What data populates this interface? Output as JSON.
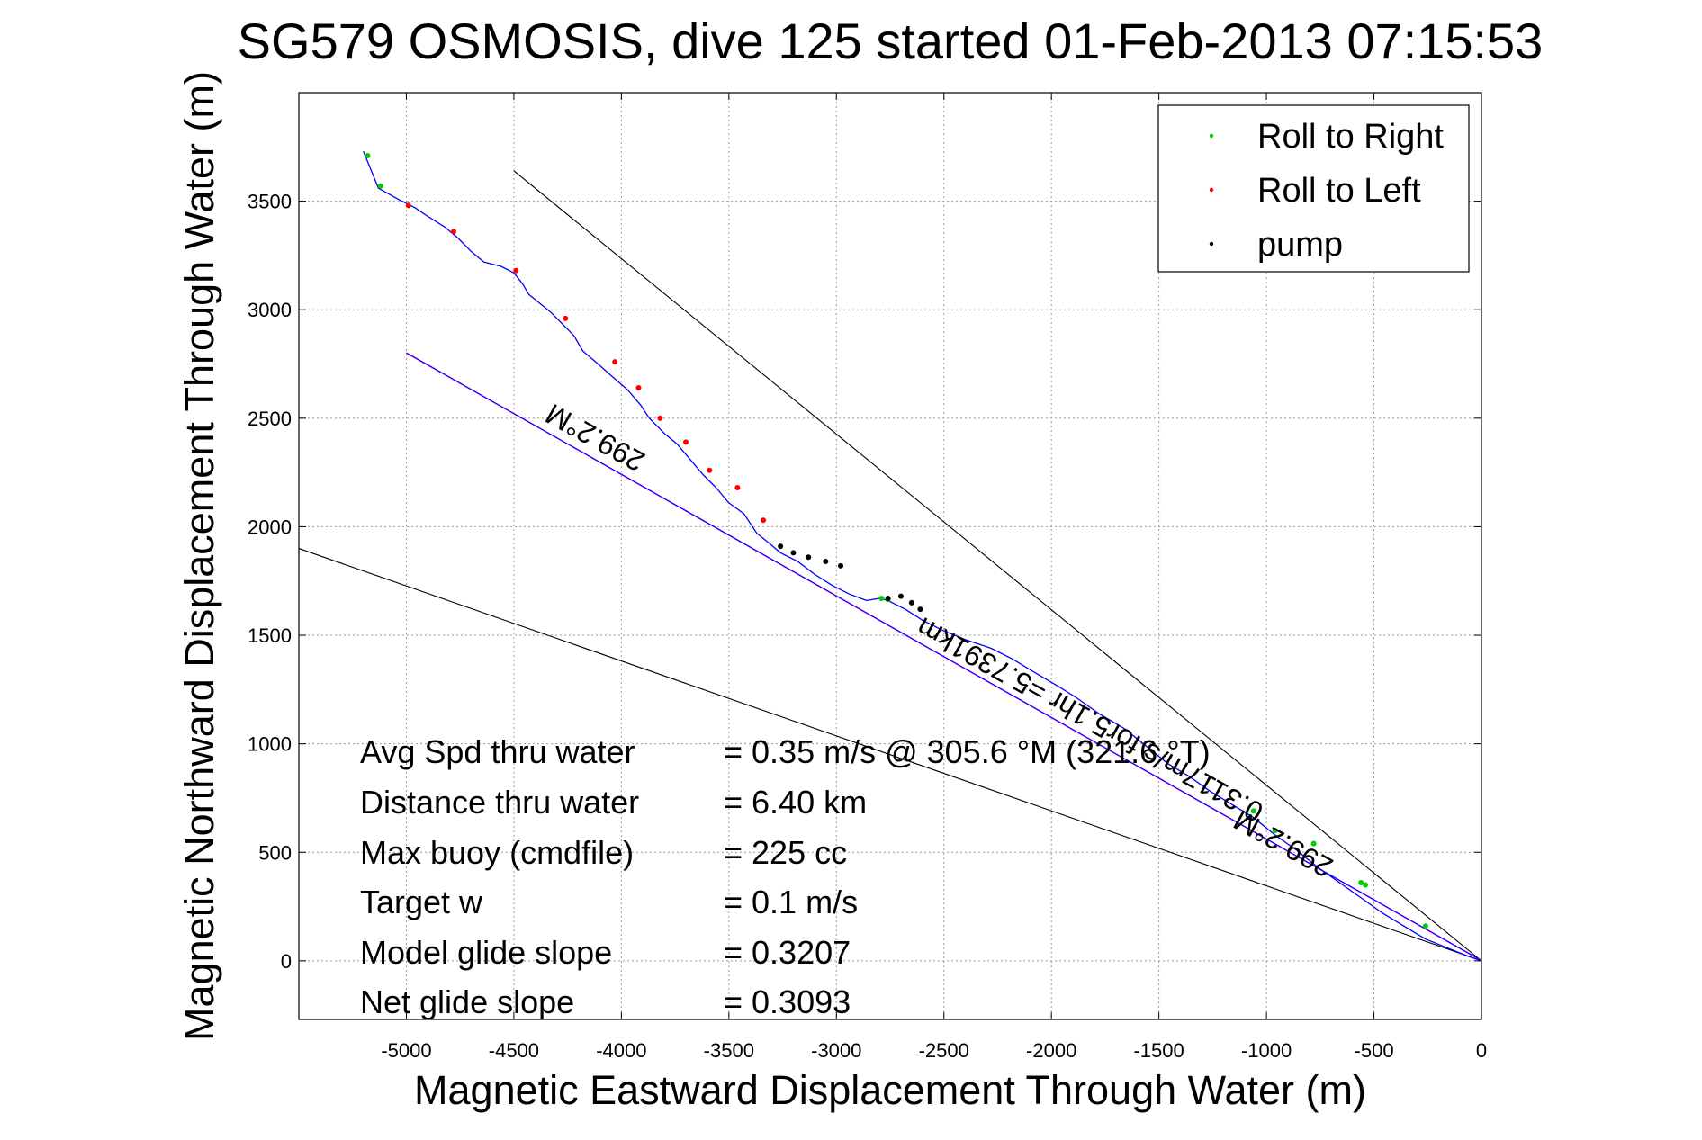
{
  "chart_data": {
    "type": "line",
    "title": "SG579 OSMOSIS, dive 125 started 01-Feb-2013 07:15:53",
    "xlabel": "Magnetic Eastward Displacement Through Water (m)",
    "ylabel": "Magnetic Northward Displacement Through Water (m)",
    "xlim": [
      -5500,
      0
    ],
    "ylim": [
      -270,
      4000
    ],
    "xticks": [
      -5000,
      -4500,
      -4000,
      -3500,
      -3000,
      -2500,
      -2000,
      -1500,
      -1000,
      -500,
      0
    ],
    "yticks": [
      0,
      500,
      1000,
      1500,
      2000,
      2500,
      3000,
      3500
    ],
    "grid": true,
    "legend_position": "top-right",
    "legend": [
      {
        "label": "Roll to Right",
        "color": "#00cc00"
      },
      {
        "label": "Roll to Left",
        "color": "#ff0000"
      },
      {
        "label": "pump",
        "color": "#000000"
      }
    ],
    "track": {
      "color": "#0000ff",
      "x": [
        -5200,
        -5130,
        -5040,
        -4960,
        -4900,
        -4820,
        -4760,
        -4700,
        -4640,
        -4560,
        -4500,
        -4460,
        -4430,
        -4380,
        -4330,
        -4280,
        -4220,
        -4180,
        -4120,
        -4040,
        -3970,
        -3910,
        -3870,
        -3800,
        -3740,
        -3680,
        -3620,
        -3560,
        -3500,
        -3430,
        -3370,
        -3320,
        -3260,
        -3180,
        -3100,
        -3020,
        -2940,
        -2860,
        -2800,
        -2760,
        -2720,
        -2680,
        -2600,
        -2500,
        -2400,
        -2280,
        -2180,
        -2080,
        -1960,
        -1880,
        -1780,
        -1660,
        -1560,
        -1460,
        -1360,
        -1260,
        -1160,
        -1060,
        -960,
        -860,
        -760,
        -660,
        -560,
        -460,
        -360,
        -260,
        -160,
        -60,
        0
      ],
      "y": [
        3730,
        3560,
        3510,
        3470,
        3430,
        3380,
        3330,
        3270,
        3220,
        3200,
        3170,
        3120,
        3070,
        3030,
        2990,
        2940,
        2880,
        2810,
        2760,
        2690,
        2630,
        2560,
        2500,
        2430,
        2380,
        2310,
        2240,
        2180,
        2110,
        2060,
        1970,
        1930,
        1880,
        1840,
        1780,
        1730,
        1690,
        1660,
        1670,
        1660,
        1640,
        1620,
        1570,
        1520,
        1480,
        1440,
        1390,
        1330,
        1260,
        1210,
        1140,
        1070,
        990,
        910,
        850,
        780,
        720,
        660,
        580,
        510,
        430,
        360,
        290,
        220,
        160,
        100,
        60,
        20,
        0
      ]
    },
    "roll_right_x": [
      -5180,
      -5120,
      -2790,
      -2760,
      -1060,
      -960,
      -780,
      -560,
      -540,
      -260
    ],
    "roll_right_y": [
      3710,
      3570,
      1670,
      1665,
      690,
      600,
      540,
      360,
      350,
      160
    ],
    "roll_left_x": [
      -4990,
      -4780,
      -4490,
      -4260,
      -4030,
      -3920,
      -3820,
      -3700,
      -3590,
      -3460,
      -3340
    ],
    "roll_left_y": [
      3480,
      3360,
      3180,
      2960,
      2760,
      2640,
      2500,
      2390,
      2260,
      2180,
      2030
    ],
    "pump_x": [
      -3260,
      -3200,
      -3130,
      -3050,
      -2980,
      -2760,
      -2700,
      -2650,
      -2610
    ],
    "pump_y": [
      1910,
      1880,
      1860,
      1840,
      1820,
      1670,
      1680,
      1650,
      1620
    ],
    "lines": [
      {
        "color": "#000000",
        "x": [
          -4500,
          0
        ],
        "y": [
          3640,
          0
        ]
      },
      {
        "color": "#000000",
        "x": [
          -5500,
          0
        ],
        "y": [
          1900,
          0
        ]
      },
      {
        "color": "#ff00ff",
        "x": [
          -5000,
          0
        ],
        "y": [
          2800,
          0
        ]
      },
      {
        "color": "#0000ff",
        "x": [
          -5000,
          0
        ],
        "y": [
          2802,
          2
        ]
      }
    ],
    "annotations": [
      {
        "text": "299.2°M",
        "x": -4100,
        "y": 2450,
        "angle": 209
      },
      {
        "text": "299.2°M",
        "x": -900,
        "y": 580,
        "angle": 209
      },
      {
        "text": "0.3117m/s for5.1hr =5.7391km",
        "x": -1800,
        "y": 1150,
        "angle": 209
      }
    ],
    "stats": [
      {
        "label": "Avg Spd thru water",
        "value": "=  0.35 m/s @ 305.6 °M (321.6 °T)"
      },
      {
        "label": "Distance thru water",
        "value": "=  6.40 km"
      },
      {
        "label": "Max buoy (cmdfile)",
        "value": "= 225 cc"
      },
      {
        "label": "Target w",
        "value": "= 0.1 m/s"
      },
      {
        "label": "Model glide slope",
        "value": "= 0.3207"
      },
      {
        "label": "Net glide slope",
        "value": "= 0.3093"
      }
    ]
  }
}
